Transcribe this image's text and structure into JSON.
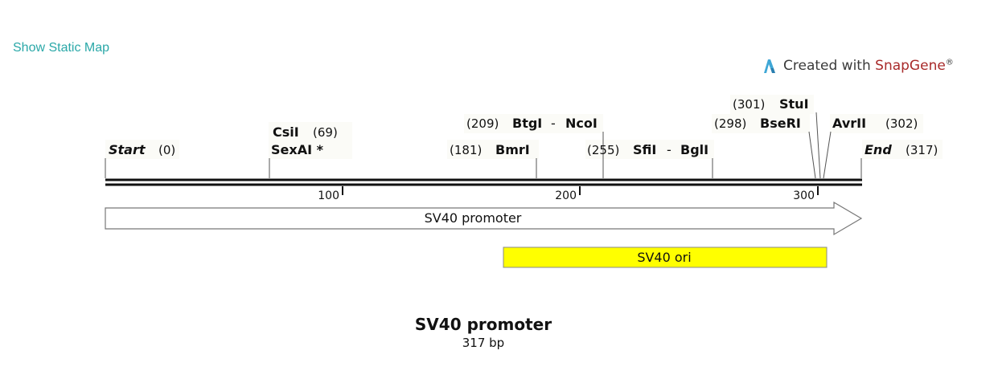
{
  "header": {
    "static_map_link": "Show Static Map",
    "brand_prefix": "Created with ",
    "brand_name": "SnapGene",
    "brand_mark": "®"
  },
  "map": {
    "ticks": [
      "100",
      "200",
      "300"
    ],
    "markers": {
      "start": {
        "name": "Start",
        "pos": "(0)"
      },
      "end": {
        "name": "End",
        "pos": "(317)"
      }
    },
    "sites": {
      "csii": {
        "pos": "(69)",
        "name": "CsiI"
      },
      "sexai": {
        "name": "SexAI *"
      },
      "bmri": {
        "pos": "(181)",
        "name": "BmrI"
      },
      "btgi_ncoi": {
        "pos": "(209)",
        "name1": "BtgI",
        "sep": "-",
        "name2": "NcoI"
      },
      "sfii_bgli": {
        "pos": "(255)",
        "name1": "SfiI",
        "sep": "-",
        "name2": "BglI"
      },
      "stui": {
        "pos": "(301)",
        "name": "StuI"
      },
      "bseri": {
        "pos": "(298)",
        "name": "BseRI"
      },
      "avrii": {
        "name": "AvrII",
        "pos": "(302)"
      }
    },
    "features": [
      {
        "label": "SV40 promoter",
        "type": "arrow",
        "color": "#ffffff"
      },
      {
        "label": "SV40 ori",
        "type": "box",
        "color": "#ffff00"
      }
    ],
    "title": "SV40 promoter",
    "length": "317 bp"
  }
}
